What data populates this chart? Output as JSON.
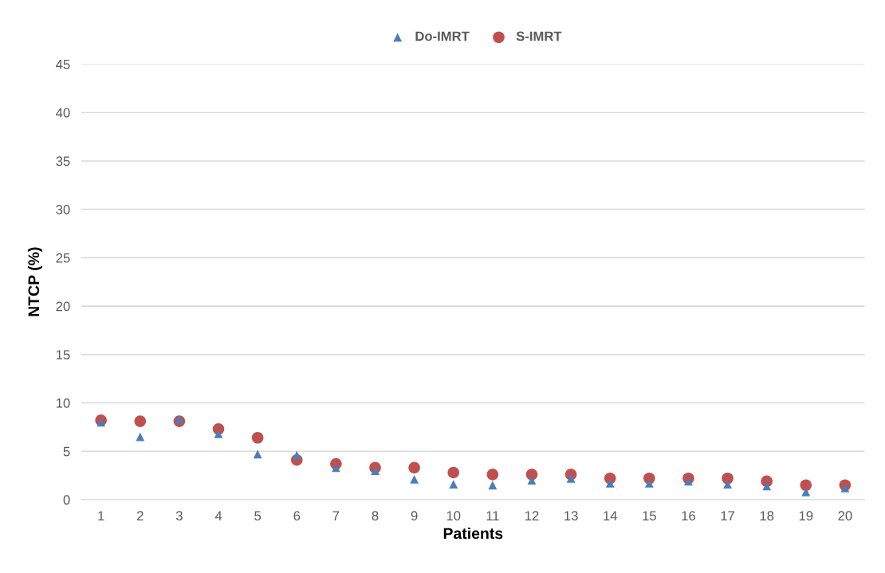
{
  "chart_data": {
    "type": "scatter",
    "xlabel": "Patients",
    "ylabel": "NTCP (%)",
    "categories": [
      "1",
      "2",
      "3",
      "4",
      "5",
      "6",
      "7",
      "8",
      "9",
      "10",
      "11",
      "12",
      "13",
      "14",
      "15",
      "16",
      "17",
      "18",
      "19",
      "20"
    ],
    "series": [
      {
        "name": "Do-IMRT",
        "color": "#4a7ebb",
        "marker": "triangle",
        "values": [
          8.0,
          6.5,
          8.3,
          6.8,
          4.7,
          4.6,
          3.3,
          3.0,
          2.1,
          1.6,
          1.5,
          2.0,
          2.2,
          1.7,
          1.7,
          1.9,
          1.6,
          1.4,
          0.8,
          1.2
        ]
      },
      {
        "name": "S-IMRT",
        "color": "#c0504d",
        "marker": "circle",
        "values": [
          8.2,
          8.1,
          8.1,
          7.3,
          6.4,
          4.1,
          3.7,
          3.3,
          3.3,
          2.8,
          2.6,
          2.6,
          2.6,
          2.2,
          2.2,
          2.2,
          2.2,
          1.9,
          1.5,
          1.5
        ]
      }
    ],
    "ylim": [
      0,
      45
    ],
    "yticks": [
      0,
      5,
      10,
      15,
      20,
      25,
      30,
      35,
      40,
      45
    ],
    "grid": "y",
    "legend": "top"
  }
}
